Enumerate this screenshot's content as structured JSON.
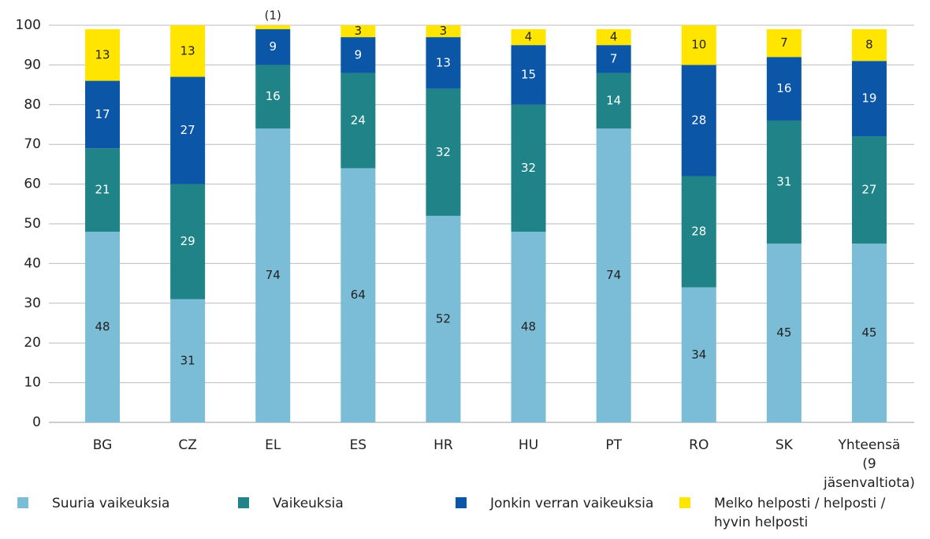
{
  "chart_data": {
    "type": "stacked_bar",
    "categories": [
      "BG",
      "CZ",
      "EL",
      "ES",
      "HR",
      "HU",
      "PT",
      "RO",
      "SK",
      "Yhteensä (9 jäsenvaltiota)"
    ],
    "series": [
      {
        "name": "Suuria vaikeuksia",
        "color": "#7bbcd6",
        "values": [
          48,
          31,
          74,
          64,
          52,
          48,
          74,
          34,
          45,
          45
        ]
      },
      {
        "name": "Vaikeuksia",
        "color": "#1f8388",
        "values": [
          21,
          29,
          16,
          24,
          32,
          32,
          14,
          28,
          31,
          27
        ]
      },
      {
        "name": "Jonkin verran vaikeuksia",
        "color": "#0b56a7",
        "values": [
          17,
          27,
          9,
          9,
          13,
          15,
          7,
          28,
          16,
          19
        ]
      },
      {
        "name": "Melko helposti / helposti / hyvin helposti",
        "color": "#ffe500",
        "values": [
          13,
          13,
          1,
          3,
          3,
          4,
          4,
          10,
          7,
          8
        ],
        "value_labels": [
          "13",
          "13",
          "(1)",
          "3",
          "3",
          "4",
          "4",
          "10",
          "7",
          "8"
        ]
      }
    ],
    "ylim": [
      0,
      100
    ],
    "yticks": [
      0,
      10,
      20,
      30,
      40,
      50,
      60,
      70,
      80,
      90,
      100
    ],
    "grid": true
  }
}
